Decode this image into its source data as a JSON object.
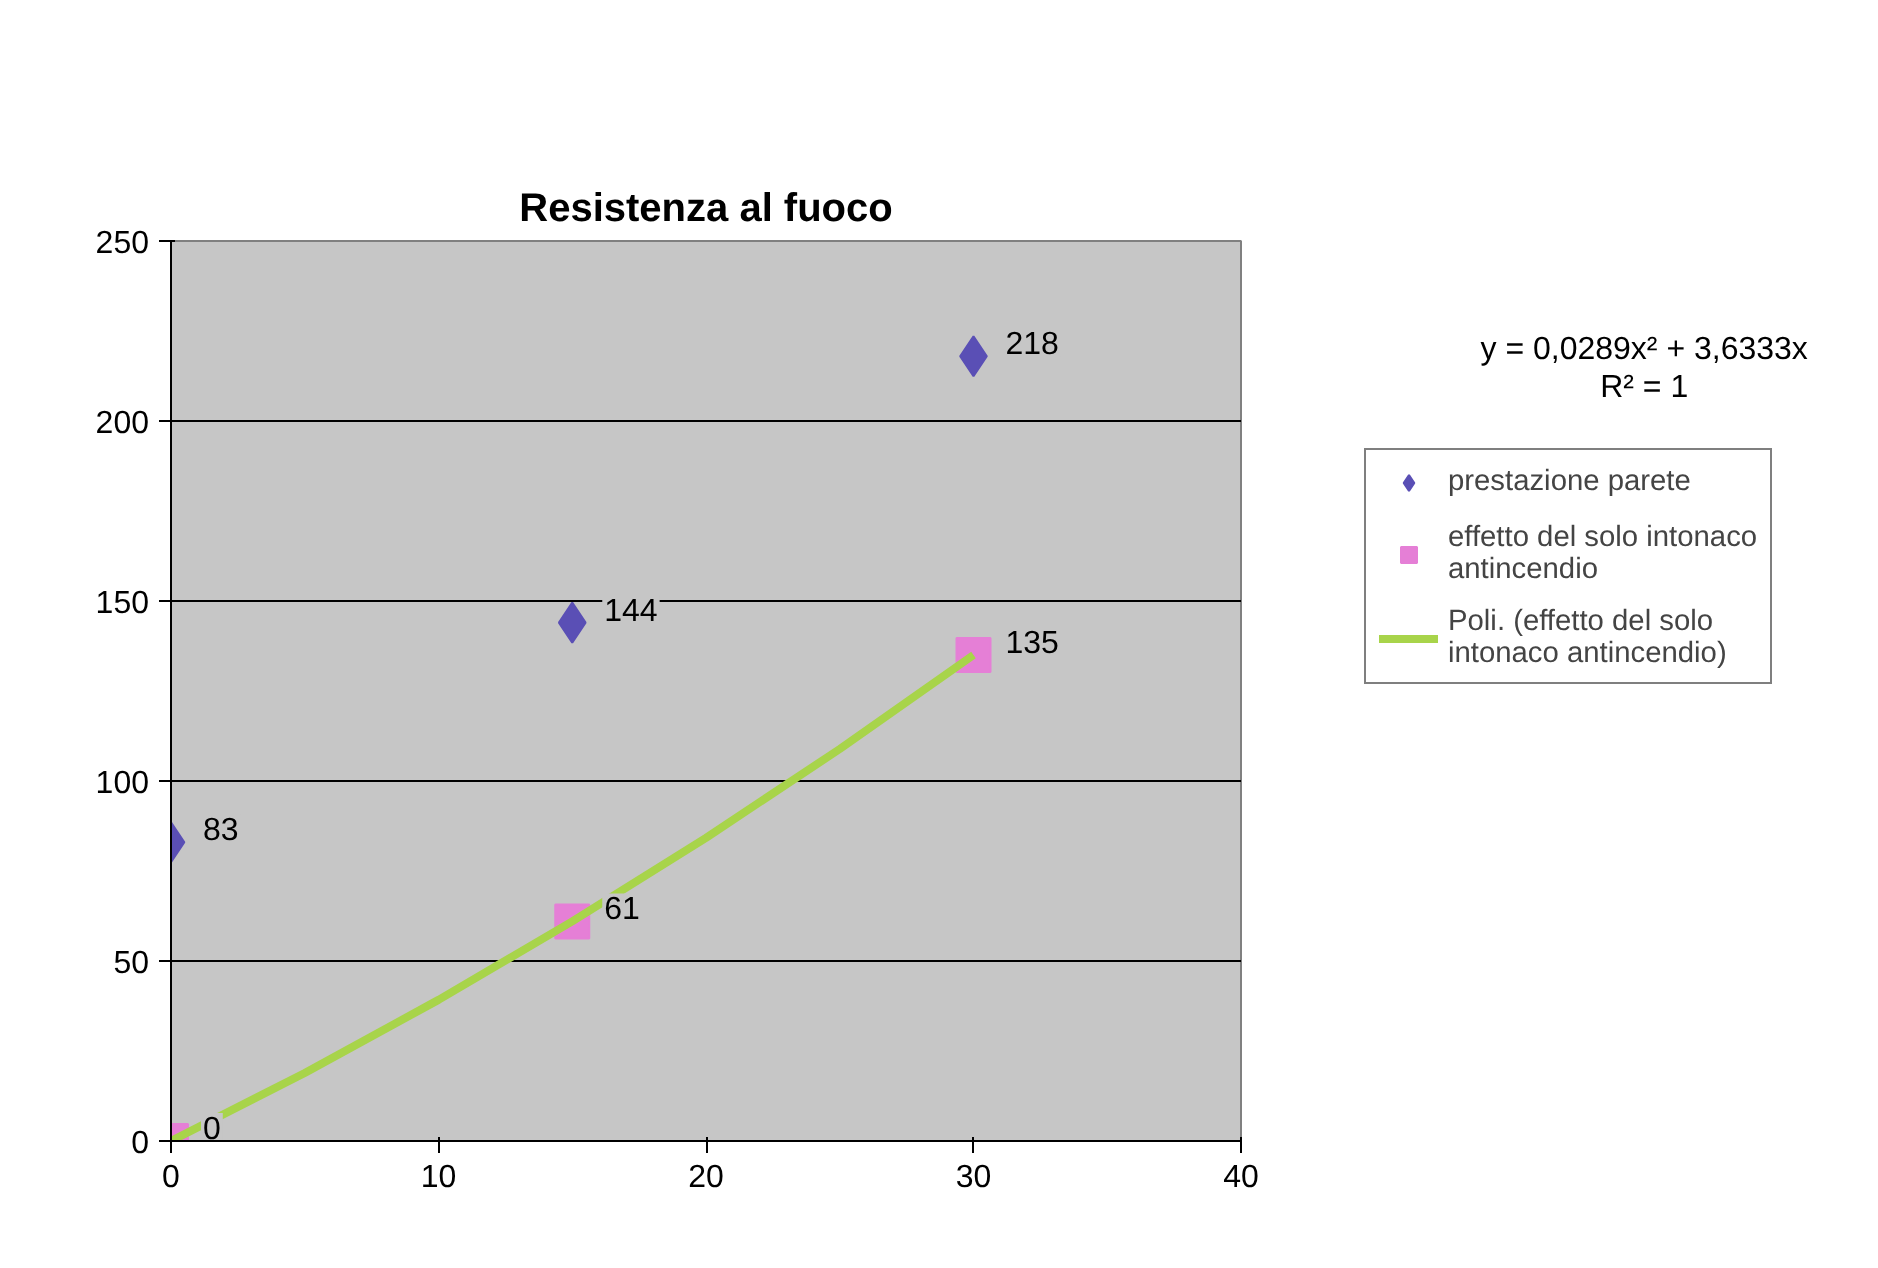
{
  "chart_data": {
    "type": "scatter",
    "title": "Resistenza al fuoco",
    "annotations": [
      "y = 0,0289x² + 3,6333x",
      "R² = 1"
    ],
    "x": [
      0,
      15,
      30
    ],
    "series": [
      {
        "name": "prestazione parete",
        "color": "#5a4fb5",
        "marker": "diamond",
        "values": [
          83,
          144,
          218
        ]
      },
      {
        "name": "effetto del solo intonaco antincendio",
        "color": "#e57fd6",
        "marker": "square",
        "values": [
          0,
          61,
          135
        ]
      },
      {
        "name": "Poli. (effetto del solo intonaco antincendio)",
        "type": "line",
        "color": "#a8d44a",
        "x": [
          0,
          5,
          10,
          15,
          20,
          25,
          30
        ],
        "values": [
          0,
          18.9,
          39.2,
          61.0,
          84.2,
          108.9,
          135.0
        ],
        "marker": "none",
        "line_style": "solid",
        "value_labels": [
          null,
          null,
          null,
          null,
          null,
          null,
          null
        ]
      }
    ],
    "data_labels": true,
    "xlim": [
      0,
      40
    ],
    "xticks": [
      0,
      10,
      20,
      30,
      40
    ],
    "ylim": [
      0,
      250
    ],
    "yticks": [
      0,
      50,
      100,
      150,
      200,
      250
    ],
    "grid": "y",
    "legend": "right"
  }
}
